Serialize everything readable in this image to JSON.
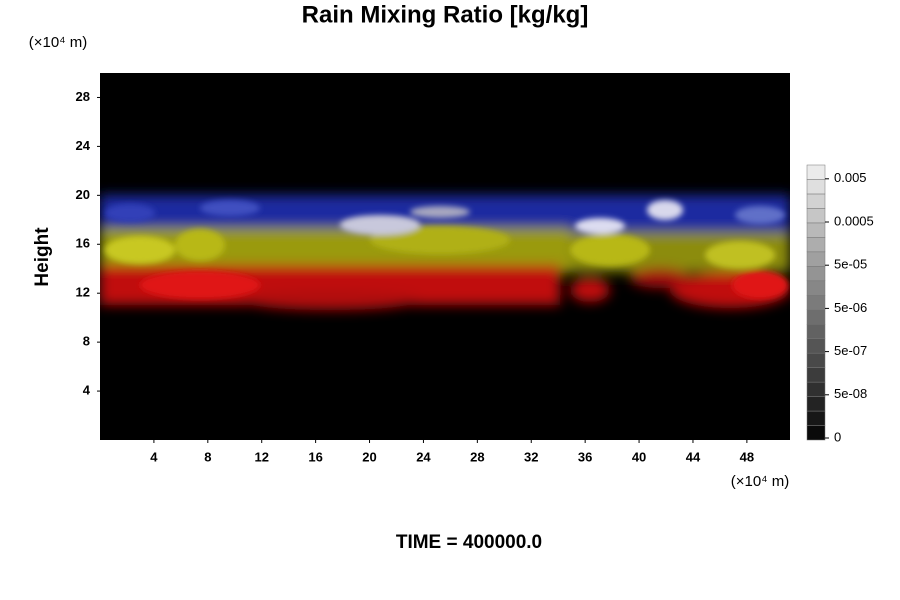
{
  "chart_data": {
    "type": "field",
    "title": "Rain Mixing Ratio [kg/kg]",
    "ylabel": "Height",
    "y_unit": "(×10⁴ m)",
    "x_unit": "(×10⁴ m)",
    "annotation": "TIME = 400000.0",
    "xlim": [
      0,
      51.2
    ],
    "xticks": [
      4,
      8,
      12,
      16,
      20,
      24,
      28,
      32,
      36,
      40,
      44,
      48
    ],
    "ylim": [
      0,
      30
    ],
    "yticks": [
      4,
      8,
      12,
      16,
      20,
      24,
      28
    ],
    "colorbar_ticks": [
      0,
      {
        "value": 5e-08,
        "label": "5e-08"
      },
      {
        "value": 5e-07,
        "label": "5e-07"
      },
      {
        "value": 5e-06,
        "label": "5e-06"
      },
      {
        "value": 5e-05,
        "label": "5e-05"
      },
      0.0005,
      0.005
    ]
  }
}
